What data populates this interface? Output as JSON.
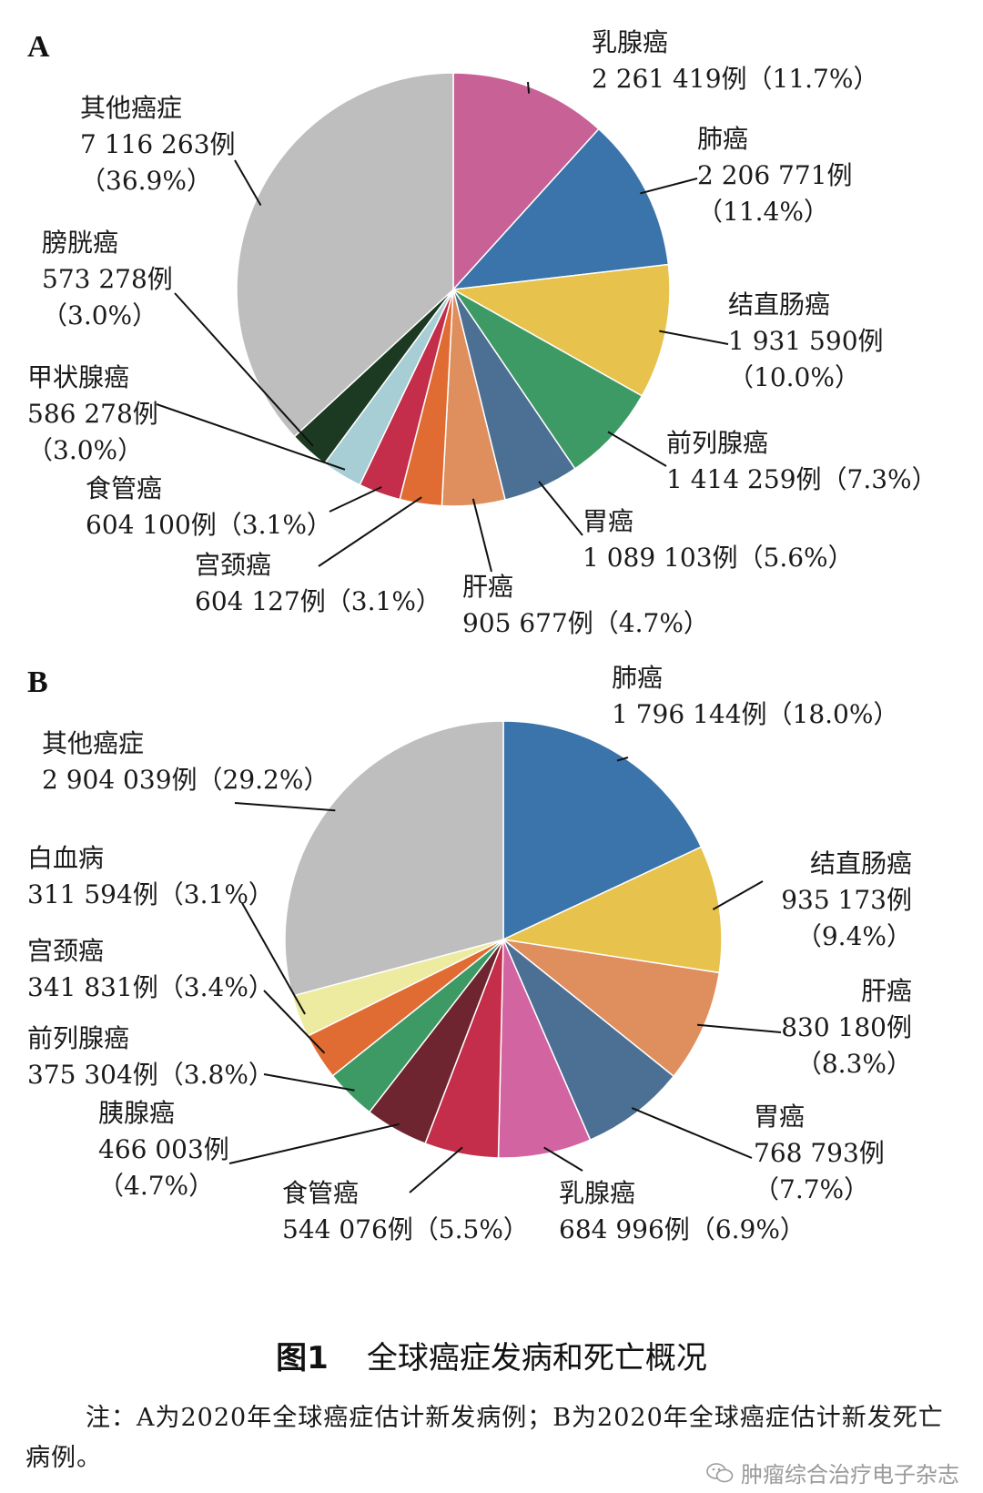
{
  "figure": {
    "caption_number": "图1",
    "caption_title": "全球癌症发病和死亡概况",
    "note": "注：A为2020年全球癌症估计新发病例；B为2020年全球癌症估计新发死亡病例。",
    "watermark": "肿瘤综合治疗电子杂志"
  },
  "chart_data": [
    {
      "type": "pie",
      "panel": "A",
      "start_angle": "12 o'clock",
      "direction": "clockwise",
      "slices": [
        {
          "name": "乳腺癌",
          "value": 2261419,
          "percent": 11.7,
          "count_text": "2 261 419例",
          "pct_text": "（11.7%）",
          "color": "#C86196"
        },
        {
          "name": "肺癌",
          "value": 2206771,
          "percent": 11.4,
          "count_text": "2 206 771例",
          "pct_text": "（11.4%）",
          "color": "#3B74AA"
        },
        {
          "name": "结直肠癌",
          "value": 1931590,
          "percent": 10.0,
          "count_text": "1 931 590例",
          "pct_text": "（10.0%）",
          "color": "#E7C24C"
        },
        {
          "name": "前列腺癌",
          "value": 1414259,
          "percent": 7.3,
          "count_text": "1 414 259例",
          "pct_text": "（7.3%）",
          "color": "#3E9A64"
        },
        {
          "name": "胃癌",
          "value": 1089103,
          "percent": 5.6,
          "count_text": "1 089 103例",
          "pct_text": "（5.6%）",
          "color": "#4C6F94"
        },
        {
          "name": "肝癌",
          "value": 905677,
          "percent": 4.7,
          "count_text": "905 677例",
          "pct_text": "（4.7%）",
          "color": "#DF8E5E"
        },
        {
          "name": "宫颈癌",
          "value": 604127,
          "percent": 3.1,
          "count_text": "604 127例",
          "pct_text": "（3.1%）",
          "color": "#E06C33"
        },
        {
          "name": "食管癌",
          "value": 604100,
          "percent": 3.1,
          "count_text": "604 100例",
          "pct_text": "（3.1%）",
          "color": "#C42E4A"
        },
        {
          "name": "甲状腺癌",
          "value": 586278,
          "percent": 3.0,
          "count_text": "586 278例",
          "pct_text": "（3.0%）",
          "color": "#A7CED4"
        },
        {
          "name": "膀胱癌",
          "value": 573278,
          "percent": 3.0,
          "count_text": "573 278例",
          "pct_text": "（3.0%）",
          "color": "#1C3A22"
        },
        {
          "name": "其他癌症",
          "value": 7116263,
          "percent": 36.9,
          "count_text": "7 116 263例",
          "pct_text": "（36.9%）",
          "color": "#BEBEBE"
        }
      ]
    },
    {
      "type": "pie",
      "panel": "B",
      "start_angle": "12 o'clock",
      "direction": "clockwise",
      "slices": [
        {
          "name": "肺癌",
          "value": 1796144,
          "percent": 18.0,
          "count_text": "1 796 144例",
          "pct_text": "（18.0%）",
          "color": "#3B74AA"
        },
        {
          "name": "结直肠癌",
          "value": 935173,
          "percent": 9.4,
          "count_text": "935 173例",
          "pct_text": "（9.4%）",
          "color": "#E7C24C"
        },
        {
          "name": "肝癌",
          "value": 830180,
          "percent": 8.3,
          "count_text": "830 180例",
          "pct_text": "（8.3%）",
          "color": "#DF8E5E"
        },
        {
          "name": "胃癌",
          "value": 768793,
          "percent": 7.7,
          "count_text": "768 793例",
          "pct_text": "（7.7%）",
          "color": "#4C6F94"
        },
        {
          "name": "乳腺癌",
          "value": 684996,
          "percent": 6.9,
          "count_text": "684 996例",
          "pct_text": "（6.9%）",
          "color": "#D264A2"
        },
        {
          "name": "食管癌",
          "value": 544076,
          "percent": 5.5,
          "count_text": "544 076例",
          "pct_text": "（5.5%）",
          "color": "#C42E4A"
        },
        {
          "name": "胰腺癌",
          "value": 466003,
          "percent": 4.7,
          "count_text": "466 003例",
          "pct_text": "（4.7%）",
          "color": "#6E2530"
        },
        {
          "name": "前列腺癌",
          "value": 375304,
          "percent": 3.8,
          "count_text": "375 304例",
          "pct_text": "（3.8%）",
          "color": "#3E9A64"
        },
        {
          "name": "宫颈癌",
          "value": 341831,
          "percent": 3.4,
          "count_text": "341 831例",
          "pct_text": "（3.4%）",
          "color": "#E06C33"
        },
        {
          "name": "白血病",
          "value": 311594,
          "percent": 3.1,
          "count_text": "311 594例",
          "pct_text": "（3.1%）",
          "color": "#EDEBA0"
        },
        {
          "name": "其他癌症",
          "value": 2904039,
          "percent": 29.2,
          "count_text": "2 904 039例",
          "pct_text": "（29.2%）",
          "color": "#BEBEBE"
        }
      ]
    }
  ]
}
